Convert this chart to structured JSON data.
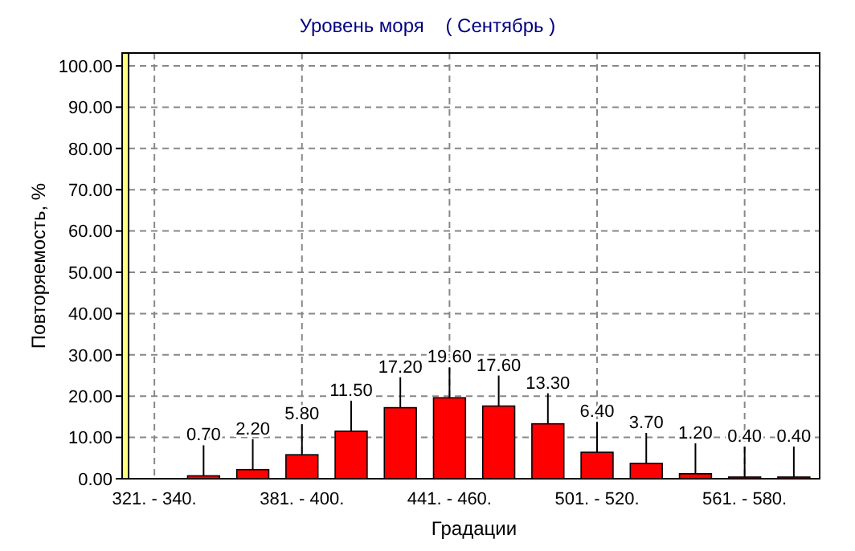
{
  "chart_data": {
    "type": "bar",
    "title": "Уровень моря    ( Сентябрь )",
    "xlabel": "Градации",
    "ylabel": "Повторяемость, %",
    "categories": [
      "321. - 340.",
      null,
      null,
      "381. - 400.",
      null,
      null,
      "441. - 460.",
      null,
      null,
      "501. - 520.",
      null,
      null,
      "561. - 580.",
      null
    ],
    "values": [
      0,
      0.7,
      2.2,
      5.8,
      11.5,
      17.2,
      19.6,
      17.6,
      13.3,
      6.4,
      3.7,
      1.2,
      0.4,
      0.4
    ],
    "value_labels": [
      null,
      "0.70",
      "2.20",
      "5.80",
      "11.50",
      "17.20",
      "19.60",
      "17.60",
      "13.30",
      "6.40",
      "3.70",
      "1.20",
      "0.40",
      "0.40"
    ],
    "color": "#ff0000",
    "ylim": [
      0,
      100
    ],
    "yticks": [
      {
        "value": 0,
        "label": "0.00"
      },
      {
        "value": 10,
        "label": "10.00"
      },
      {
        "value": 20,
        "label": "20.00"
      },
      {
        "value": 30,
        "label": "30.00"
      },
      {
        "value": 40,
        "label": "40.00"
      },
      {
        "value": 50,
        "label": "50.00"
      },
      {
        "value": 60,
        "label": "60.00"
      },
      {
        "value": 70,
        "label": "70.00"
      },
      {
        "value": 80,
        "label": "80.00"
      },
      {
        "value": 90,
        "label": "90.00"
      },
      {
        "value": 100,
        "label": "100.00"
      }
    ],
    "grid": true
  }
}
